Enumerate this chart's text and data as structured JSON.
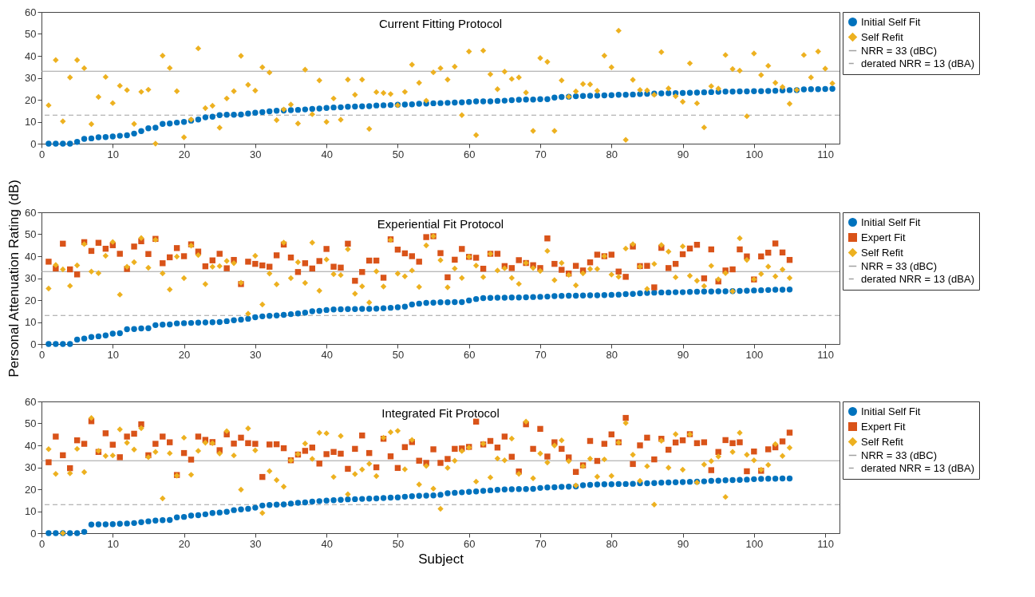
{
  "chart_data": [
    {
      "type": "scatter",
      "title": "Current Fitting Protocol",
      "xlim": [
        0,
        112
      ],
      "xticks": [
        0,
        10,
        20,
        30,
        40,
        50,
        60,
        70,
        80,
        90,
        100,
        110
      ],
      "ylim": [
        0,
        60
      ],
      "yticks": [
        0,
        10,
        20,
        30,
        40,
        50,
        60
      ],
      "grid": false,
      "legend": "top right",
      "x": [
        1,
        2,
        3,
        4,
        5,
        6,
        7,
        8,
        9,
        10,
        11,
        12,
        13,
        14,
        15,
        16,
        17,
        18,
        19,
        20,
        21,
        22,
        23,
        24,
        25,
        26,
        27,
        28,
        29,
        30,
        31,
        32,
        33,
        34,
        35,
        36,
        37,
        38,
        39,
        40,
        41,
        42,
        43,
        44,
        45,
        46,
        47,
        48,
        49,
        50,
        51,
        52,
        53,
        54,
        55,
        56,
        57,
        58,
        59,
        60,
        61,
        62,
        63,
        64,
        65,
        66,
        67,
        68,
        69,
        70,
        71,
        72,
        73,
        74,
        75,
        76,
        77,
        78,
        79,
        80,
        81,
        82,
        83,
        84,
        85,
        86,
        87,
        88,
        89,
        90,
        91,
        92,
        93,
        94,
        95,
        96,
        97,
        98,
        99,
        100,
        101,
        102,
        103,
        104,
        105,
        106,
        107,
        108,
        109,
        110,
        111
      ],
      "series": [
        {
          "name": "Initial Self Fit",
          "color": "#0072bd",
          "marker": "circle",
          "values": [
            0,
            0,
            0,
            0,
            0.8,
            2.2,
            2.4,
            2.9,
            3.0,
            3.3,
            3.6,
            3.8,
            4.6,
            5.7,
            7.0,
            7.3,
            9.0,
            9.2,
            9.6,
            9.9,
            10.5,
            11.0,
            12.0,
            12.3,
            13.0,
            13.2,
            13.2,
            13.3,
            13.7,
            14.1,
            14.4,
            14.7,
            15.0,
            15.1,
            15.3,
            15.4,
            15.6,
            15.8,
            16.0,
            16.3,
            16.5,
            16.6,
            16.8,
            16.9,
            17.0,
            17.1,
            17.4,
            17.5,
            17.6,
            17.7,
            17.8,
            17.9,
            18.2,
            18.3,
            18.4,
            18.5,
            18.6,
            18.7,
            18.8,
            19.0,
            19.3,
            19.3,
            19.3,
            19.5,
            19.6,
            19.8,
            20.0,
            20.1,
            20.1,
            20.3,
            20.3,
            21.0,
            21.3,
            21.4,
            21.6,
            21.7,
            21.8,
            21.9,
            22.0,
            22.1,
            22.3,
            22.3,
            22.4,
            22.6,
            22.7,
            22.8,
            22.9,
            23.0,
            23.0,
            23.1,
            23.2,
            23.3,
            23.4,
            23.5,
            23.6,
            23.7,
            23.7,
            23.8,
            23.8,
            23.9,
            23.9,
            24.0,
            24.1,
            24.3,
            24.4,
            24.4,
            24.7,
            24.8,
            24.8,
            24.9,
            25.0
          ]
        },
        {
          "name": "Self Refit",
          "color": "#edb120",
          "marker": "diamond",
          "values": [
            17.5,
            38.1,
            10.2,
            30.2,
            38.1,
            34.4,
            8.9,
            21.3,
            30.4,
            18.5,
            26.4,
            24.4,
            9.0,
            23.6,
            24.6,
            0.0,
            40.1,
            34.5,
            23.9,
            2.9,
            11.0,
            43.4,
            16.2,
            17.3,
            7.3,
            20.6,
            23.9,
            40.0,
            26.8,
            24.2,
            34.8,
            32.4,
            10.7,
            15.6,
            17.8,
            9.2,
            33.7,
            13.4,
            28.8,
            9.9,
            20.6,
            10.9,
            29.2,
            22.3,
            29.2,
            6.7,
            23.5,
            23.1,
            22.6,
            17.5,
            23.6,
            36.0,
            27.7,
            19.6,
            32.5,
            34.4,
            29.2,
            35.1,
            13.0,
            42.0,
            3.9,
            42.4,
            31.6,
            24.8,
            32.8,
            29.5,
            30.2,
            23.3,
            5.8,
            39.0,
            37.3,
            5.8,
            28.8,
            21.4,
            23.8,
            27.2,
            27.0,
            24.1,
            40.1,
            34.8,
            51.5,
            1.7,
            29.1,
            24.5,
            24.3,
            22.3,
            41.7,
            25.2,
            21.6,
            19.1,
            36.6,
            18.4,
            7.4,
            26.2,
            25.1,
            40.4,
            34.0,
            33.3,
            12.5,
            41.1,
            31.3,
            35.5,
            27.7,
            25.8,
            18.2,
            24.5,
            40.4,
            30.2,
            42.0,
            34.2,
            27.5
          ]
        }
      ],
      "ref_lines": [
        {
          "axis": "y",
          "value": 33,
          "label": "NRR = 33 (dBC)",
          "color": "#a0a0a0",
          "line_style": "solid"
        },
        {
          "axis": "y",
          "value": 13,
          "label": "derated NRR = 13 (dBA)",
          "color": "#a0a0a0",
          "line_style": "dashed"
        }
      ]
    },
    {
      "type": "scatter",
      "title": "Experiential Fit Protocol",
      "ylabel": "Personal Attenuation Rating (dB)",
      "xlim": [
        0,
        112
      ],
      "xticks": [
        0,
        10,
        20,
        30,
        40,
        50,
        60,
        70,
        80,
        90,
        100,
        110
      ],
      "ylim": [
        0,
        60
      ],
      "yticks": [
        0,
        10,
        20,
        30,
        40,
        50,
        60
      ],
      "grid": false,
      "legend": "top right",
      "x": [
        1,
        2,
        3,
        4,
        5,
        6,
        7,
        8,
        9,
        10,
        11,
        12,
        13,
        14,
        15,
        16,
        17,
        18,
        19,
        20,
        21,
        22,
        23,
        24,
        25,
        26,
        27,
        28,
        29,
        30,
        31,
        32,
        33,
        34,
        35,
        36,
        37,
        38,
        39,
        40,
        41,
        42,
        43,
        44,
        45,
        46,
        47,
        48,
        49,
        50,
        51,
        52,
        53,
        54,
        55,
        56,
        57,
        58,
        59,
        60,
        61,
        62,
        63,
        64,
        65,
        66,
        67,
        68,
        69,
        70,
        71,
        72,
        73,
        74,
        75,
        76,
        77,
        78,
        79,
        80,
        81,
        82,
        83,
        84,
        85,
        86,
        87,
        88,
        89,
        90,
        91,
        92,
        93,
        94,
        95,
        96,
        97,
        98,
        99,
        100,
        101,
        102,
        103,
        104,
        105
      ],
      "series": [
        {
          "name": "Initial Self Fit",
          "color": "#0072bd",
          "marker": "circle",
          "values": [
            0,
            0,
            0,
            0,
            2.0,
            2.5,
            3.2,
            3.5,
            3.9,
            4.7,
            4.9,
            6.7,
            6.8,
            7.1,
            7.2,
            8.6,
            8.8,
            8.9,
            9.4,
            9.5,
            9.6,
            9.7,
            9.8,
            9.9,
            10.0,
            10.4,
            10.8,
            11.1,
            11.5,
            12.2,
            12.6,
            12.8,
            13.0,
            13.3,
            13.6,
            13.9,
            14.3,
            14.9,
            15.1,
            15.5,
            15.7,
            15.8,
            15.9,
            15.9,
            16.0,
            16.0,
            16.1,
            16.3,
            16.5,
            16.7,
            17.0,
            18.0,
            18.4,
            18.7,
            18.8,
            19.0,
            19.0,
            19.1,
            19.1,
            19.8,
            20.5,
            20.9,
            21.0,
            21.1,
            21.1,
            21.2,
            21.2,
            21.3,
            21.4,
            21.5,
            21.6,
            21.8,
            21.9,
            22.0,
            22.0,
            22.1,
            22.2,
            22.2,
            22.3,
            22.4,
            22.5,
            22.7,
            22.8,
            23.1,
            23.3,
            23.4,
            23.5,
            23.5,
            23.6,
            23.6,
            23.7,
            23.8,
            23.9,
            23.9,
            24.0,
            24.0,
            24.1,
            24.2,
            24.3,
            24.4,
            24.5,
            24.6,
            24.7,
            24.7,
            24.8
          ]
        },
        {
          "name": "Expert Fit",
          "color": "#d95319",
          "marker": "square",
          "values": [
            37.5,
            34.4,
            45.7,
            34.0,
            31.7,
            46.4,
            42.4,
            46.1,
            43.4,
            45.0,
            41.1,
            34.2,
            44.4,
            46.8,
            41.0,
            47.9,
            36.8,
            39.5,
            43.7,
            40.0,
            45.4,
            42.1,
            35.4,
            38.1,
            41.1,
            34.5,
            38.3,
            27.3,
            37.5,
            36.5,
            35.8,
            35.2,
            40.4,
            45.3,
            39.4,
            32.8,
            36.8,
            34.4,
            37.8,
            43.3,
            35.2,
            34.8,
            45.7,
            28.8,
            32.8,
            38.0,
            38.0,
            30.2,
            47.7,
            43.0,
            41.3,
            40.0,
            37.5,
            48.7,
            49.1,
            41.4,
            30.4,
            38.4,
            43.3,
            39.7,
            39.3,
            34.3,
            41.1,
            41.1,
            35.5,
            34.6,
            38.2,
            36.9,
            35.9,
            34.6,
            48.1,
            36.5,
            33.8,
            32.1,
            35.6,
            33.5,
            37.2,
            40.7,
            40.0,
            40.7,
            33.0,
            30.6,
            44.4,
            35.5,
            35.6,
            25.8,
            43.8,
            34.6,
            36.5,
            40.9,
            43.5,
            45.2,
            29.9,
            43.1,
            28.5,
            33.5,
            34.0,
            43.1,
            39.9,
            29.4,
            39.9,
            41.6,
            45.8,
            41.7,
            38.3
          ]
        },
        {
          "name": "Self Refit",
          "color": "#edb120",
          "marker": "diamond",
          "values": [
            25.3,
            36.0,
            34.0,
            26.5,
            35.8,
            45.5,
            33.0,
            32.3,
            40.2,
            46.5,
            22.5,
            35.2,
            37.3,
            48.3,
            34.7,
            47.5,
            32.2,
            24.8,
            39.8,
            30.0,
            44.8,
            40.5,
            27.3,
            35.2,
            35.5,
            37.8,
            36.8,
            27.9,
            13.8,
            40.2,
            18.0,
            32.1,
            27.2,
            46.2,
            30.0,
            37.3,
            27.8,
            46.2,
            24.3,
            38.5,
            31.8,
            31.4,
            43.2,
            22.9,
            26.3,
            18.9,
            33.1,
            26.2,
            47.4,
            32.1,
            30.8,
            33.5,
            26.0,
            44.9,
            49.1,
            38.2,
            25.8,
            34.4,
            30.1,
            39.7,
            35.7,
            30.5,
            41.1,
            33.5,
            34.5,
            30.1,
            27.4,
            36.9,
            34.6,
            33.3,
            42.4,
            29.1,
            36.9,
            31.5,
            26.7,
            32.2,
            34.2,
            34.2,
            40.0,
            31.6,
            30.6,
            43.5,
            45.5,
            35.3,
            25.1,
            36.5,
            45.1,
            42.1,
            30.4,
            44.5,
            31.1,
            28.8,
            26.4,
            35.6,
            29.5,
            32.3,
            24.0,
            48.2,
            38.3,
            29.5,
            31.9,
            35.3,
            30.8,
            33.9,
            30.1
          ]
        }
      ],
      "ref_lines": [
        {
          "axis": "y",
          "value": 33,
          "label": "NRR = 33 (dBC)",
          "color": "#a0a0a0",
          "line_style": "solid"
        },
        {
          "axis": "y",
          "value": 13,
          "label": "derated NRR = 13 (dBA)",
          "color": "#a0a0a0",
          "line_style": "dashed"
        }
      ]
    },
    {
      "type": "scatter",
      "title": "Integrated Fit Protocol",
      "xlabel": "Subject",
      "xlim": [
        0,
        112
      ],
      "xticks": [
        0,
        10,
        20,
        30,
        40,
        50,
        60,
        70,
        80,
        90,
        100,
        110
      ],
      "ylim": [
        0,
        60
      ],
      "yticks": [
        0,
        10,
        20,
        30,
        40,
        50,
        60
      ],
      "grid": false,
      "legend": "top right",
      "x": [
        1,
        2,
        3,
        4,
        5,
        6,
        7,
        8,
        9,
        10,
        11,
        12,
        13,
        14,
        15,
        16,
        17,
        18,
        19,
        20,
        21,
        22,
        23,
        24,
        25,
        26,
        27,
        28,
        29,
        30,
        31,
        32,
        33,
        34,
        35,
        36,
        37,
        38,
        39,
        40,
        41,
        42,
        43,
        44,
        45,
        46,
        47,
        48,
        49,
        50,
        51,
        52,
        53,
        54,
        55,
        56,
        57,
        58,
        59,
        60,
        61,
        62,
        63,
        64,
        65,
        66,
        67,
        68,
        69,
        70,
        71,
        72,
        73,
        74,
        75,
        76,
        77,
        78,
        79,
        80,
        81,
        82,
        83,
        84,
        85,
        86,
        87,
        88,
        89,
        90,
        91,
        92,
        93,
        94,
        95,
        96,
        97,
        98,
        99,
        100,
        101,
        102,
        103,
        104,
        105
      ],
      "series": [
        {
          "name": "Initial Self Fit",
          "color": "#0072bd",
          "marker": "circle",
          "values": [
            0,
            0,
            0,
            0,
            0,
            0.6,
            3.9,
            4.0,
            4.0,
            4.1,
            4.3,
            4.4,
            4.6,
            5.0,
            5.4,
            5.7,
            5.9,
            6.0,
            7.2,
            7.4,
            8.0,
            8.2,
            8.6,
            9.2,
            9.4,
            9.7,
            10.5,
            10.8,
            11.1,
            11.6,
            12.6,
            12.8,
            13.0,
            13.1,
            13.5,
            13.8,
            14.0,
            14.4,
            14.6,
            14.8,
            15.0,
            15.2,
            15.4,
            15.5,
            15.6,
            15.7,
            15.8,
            16.0,
            16.2,
            16.3,
            16.6,
            16.8,
            17.0,
            17.1,
            17.2,
            17.5,
            18.2,
            18.4,
            18.6,
            18.8,
            19.0,
            19.3,
            19.5,
            19.7,
            19.9,
            20.0,
            20.1,
            20.1,
            20.2,
            20.6,
            20.8,
            20.9,
            21.1,
            21.2,
            21.3,
            21.8,
            22.0,
            22.2,
            22.3,
            22.3,
            22.4,
            22.4,
            22.5,
            22.7,
            22.7,
            22.8,
            23.0,
            23.1,
            23.2,
            23.3,
            23.4,
            23.5,
            23.6,
            23.8,
            23.9,
            24.1,
            24.2,
            24.3,
            24.4,
            24.6,
            24.7,
            24.8,
            24.8,
            24.9,
            24.9
          ]
        },
        {
          "name": "Expert Fit",
          "color": "#d95319",
          "marker": "square",
          "values": [
            32.3,
            44.0,
            35.5,
            29.6,
            42.3,
            40.7,
            51.0,
            37.0,
            45.5,
            40.3,
            34.6,
            44.0,
            45.3,
            49.6,
            35.5,
            40.7,
            44.0,
            41.4,
            26.5,
            36.5,
            33.5,
            44.0,
            42.5,
            41.5,
            37.8,
            45.0,
            40.8,
            43.5,
            41.0,
            40.7,
            25.6,
            40.4,
            40.5,
            38.7,
            33.2,
            35.8,
            37.5,
            39.0,
            31.7,
            36.0,
            37.0,
            36.2,
            29.3,
            38.4,
            44.5,
            36.5,
            30.0,
            43.0,
            35.0,
            29.7,
            39.2,
            41.5,
            33.0,
            32.0,
            38.2,
            32.0,
            33.8,
            38.4,
            38.6,
            39.3,
            50.8,
            40.4,
            42.0,
            39.0,
            44.0,
            34.8,
            28.1,
            49.6,
            38.4,
            47.5,
            34.9,
            41.4,
            38.4,
            34.5,
            27.9,
            30.9,
            42.0,
            32.9,
            40.7,
            45.0,
            41.4,
            52.5,
            31.5,
            40.0,
            43.5,
            33.6,
            43.0,
            38.0,
            41.3,
            42.3,
            45.1,
            41.0,
            41.4,
            28.7,
            37.0,
            42.4,
            41.0,
            41.4,
            28.2,
            37.2,
            28.4,
            38.2,
            39.1,
            41.8,
            45.8
          ]
        },
        {
          "name": "Self Refit",
          "color": "#edb120",
          "marker": "diamond",
          "values": [
            38.3,
            27.0,
            0.0,
            27.3,
            38.4,
            27.8,
            52.5,
            37.5,
            35.2,
            35.4,
            47.3,
            41.2,
            38.1,
            47.8,
            34.6,
            37.0,
            15.8,
            36.4,
            26.2,
            43.5,
            26.6,
            37.5,
            41.2,
            41.0,
            36.3,
            46.5,
            35.4,
            19.8,
            47.7,
            37.7,
            9.2,
            28.3,
            24.2,
            21.2,
            33.2,
            36.0,
            40.8,
            33.8,
            45.7,
            45.5,
            25.6,
            44.3,
            17.7,
            26.9,
            29.0,
            31.6,
            26.0,
            43.5,
            46.0,
            46.6,
            29.1,
            42.5,
            22.2,
            30.6,
            20.3,
            11.1,
            29.7,
            33.0,
            37.4,
            39.0,
            23.5,
            40.7,
            25.4,
            34.0,
            33.2,
            43.1,
            27.0,
            50.8,
            25.0,
            36.3,
            32.2,
            39.9,
            42.3,
            32.8,
            21.7,
            30.5,
            33.9,
            25.7,
            33.6,
            26.1,
            41.3,
            50.2,
            35.7,
            23.8,
            30.5,
            13.0,
            42.1,
            29.8,
            45.1,
            28.9,
            45.0,
            23.1,
            31.3,
            32.8,
            34.9,
            16.5,
            37.0,
            45.7,
            35.7,
            33.2,
            28.9,
            31.1,
            40.6,
            35.2,
            38.9
          ]
        }
      ],
      "ref_lines": [
        {
          "axis": "y",
          "value": 33,
          "label": "NRR = 33 (dBC)",
          "color": "#a0a0a0",
          "line_style": "solid"
        },
        {
          "axis": "y",
          "value": 13,
          "label": "derated NRR = 13 (dBA)",
          "color": "#a0a0a0",
          "line_style": "dashed"
        }
      ]
    }
  ]
}
